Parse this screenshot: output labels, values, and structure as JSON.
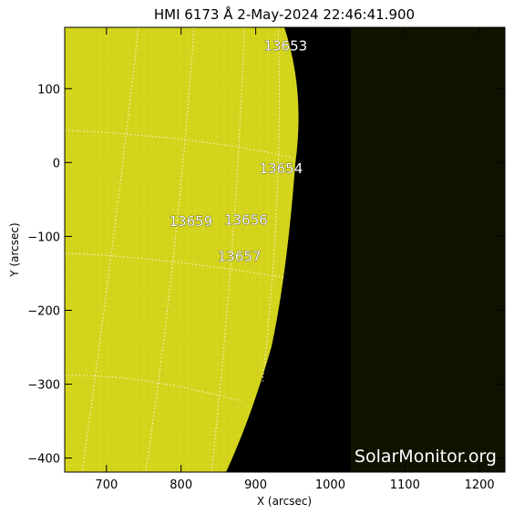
{
  "title": "HMI 6173 Å  2-May-2024 22:46:41.900",
  "watermark": "SolarMonitor.org",
  "colors": {
    "disk": "#d4d41c",
    "space": "#000000",
    "outside_fov": "#111100",
    "grid": "#ffffff"
  },
  "axes": {
    "xlabel": "X (arcsec)",
    "ylabel": "Y (arcsec)",
    "xlim": [
      644,
      1234
    ],
    "ylim": [
      -419,
      183
    ],
    "xticks": [
      700,
      800,
      900,
      1000,
      1100,
      1200
    ],
    "yticks": [
      100,
      0,
      -100,
      -200,
      -300,
      -400
    ],
    "xtick_labels": [
      "700",
      "800",
      "900",
      "1000",
      "1100",
      "1200"
    ],
    "ytick_labels": [
      "100",
      "0",
      "−100",
      "−200",
      "−300",
      "−400"
    ]
  },
  "regions": [
    {
      "label": "13653",
      "x": 940,
      "y": 158
    },
    {
      "label": "13654",
      "x": 934,
      "y": -8
    },
    {
      "label": "13659",
      "x": 813,
      "y": -80
    },
    {
      "label": "13656",
      "x": 887,
      "y": -78
    },
    {
      "label": "13657",
      "x": 878,
      "y": -127
    }
  ]
}
